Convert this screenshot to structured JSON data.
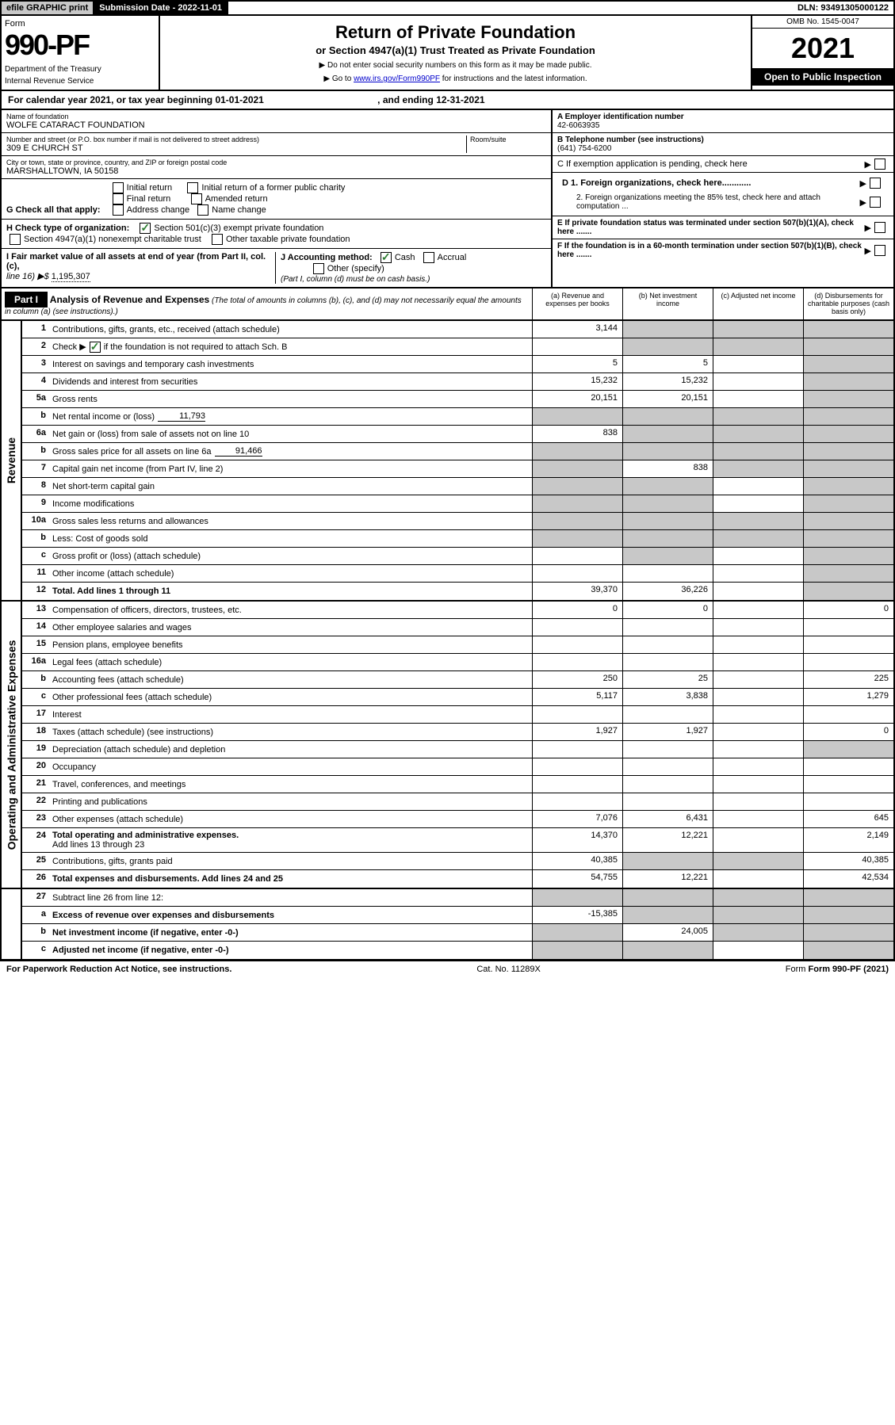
{
  "header_bar": {
    "efile": "efile GRAPHIC print",
    "submission": "Submission Date - 2022-11-01",
    "dln": "DLN: 93491305000122"
  },
  "form_header": {
    "form_word": "Form",
    "form_num": "990-PF",
    "dept1": "Department of the Treasury",
    "dept2": "Internal Revenue Service",
    "title": "Return of Private Foundation",
    "subtitle": "or Section 4947(a)(1) Trust Treated as Private Foundation",
    "inst1": "▶ Do not enter social security numbers on this form as it may be made public.",
    "inst2_pre": "▶ Go to ",
    "inst2_link": "www.irs.gov/Form990PF",
    "inst2_post": " for instructions and the latest information.",
    "omb": "OMB No. 1545-0047",
    "year": "2021",
    "open": "Open to Public Inspection"
  },
  "calendar": {
    "text_pre": "For calendar year 2021, or tax year beginning ",
    "begin": "01-01-2021",
    "mid": " , and ending ",
    "end": "12-31-2021"
  },
  "name_block": {
    "name_label": "Name of foundation",
    "name": "WOLFE CATARACT FOUNDATION",
    "addr_label": "Number and street (or P.O. box number if mail is not delivered to street address)",
    "addr": "309 E CHURCH ST",
    "room_label": "Room/suite",
    "city_label": "City or town, state or province, country, and ZIP or foreign postal code",
    "city": "MARSHALLTOWN, IA  50158"
  },
  "right_block": {
    "a_label": "A Employer identification number",
    "a_val": "42-6063935",
    "b_label": "B Telephone number (see instructions)",
    "b_val": "(641) 754-6200",
    "c_label": "C If exemption application is pending, check here",
    "d1": "D 1. Foreign organizations, check here............",
    "d2": "2. Foreign organizations meeting the 85% test, check here and attach computation ...",
    "e": "E  If private foundation status was terminated under section 507(b)(1)(A), check here .......",
    "f": "F  If the foundation is in a 60-month termination under section 507(b)(1)(B), check here .......",
    "arrow": "▶"
  },
  "g": {
    "label": "G Check all that apply:",
    "opts": [
      "Initial return",
      "Final return",
      "Address change",
      "Initial return of a former public charity",
      "Amended return",
      "Name change"
    ]
  },
  "h": {
    "label": "H Check type of organization:",
    "opt1": "Section 501(c)(3) exempt private foundation",
    "opt2": "Section 4947(a)(1) nonexempt charitable trust",
    "opt3": "Other taxable private foundation"
  },
  "i": {
    "label": "I Fair market value of all assets at end of year (from Part II, col. (c),",
    "line16": "line 16) ▶$ ",
    "value": "1,195,307"
  },
  "j": {
    "label": "J Accounting method:",
    "cash": "Cash",
    "accrual": "Accrual",
    "other": "Other (specify)",
    "note": "(Part I, column (d) must be on cash basis.)"
  },
  "part1": {
    "label": "Part I",
    "title": "Analysis of Revenue and Expenses",
    "title_note": " (The total of amounts in columns (b), (c), and (d) may not necessarily equal the amounts in column (a) (see instructions).)",
    "col_a": "(a)   Revenue and expenses per books",
    "col_b": "(b)   Net investment income",
    "col_c": "(c)   Adjusted net income",
    "col_d": "(d)   Disbursements for charitable purposes (cash basis only)"
  },
  "sides": {
    "revenue": "Revenue",
    "expenses": "Operating and Administrative Expenses"
  },
  "lines": {
    "l1": {
      "num": "1",
      "desc": "Contributions, gifts, grants, etc., received (attach schedule)",
      "a": "3,144"
    },
    "l2": {
      "num": "2",
      "desc_pre": "Check ▶",
      "desc_post": " if the foundation is not required to attach Sch. B"
    },
    "l3": {
      "num": "3",
      "desc": "Interest on savings and temporary cash investments",
      "a": "5",
      "b": "5"
    },
    "l4": {
      "num": "4",
      "desc": "Dividends and interest from securities",
      "a": "15,232",
      "b": "15,232"
    },
    "l5a": {
      "num": "5a",
      "desc": "Gross rents",
      "a": "20,151",
      "b": "20,151"
    },
    "l5b": {
      "num": "b",
      "desc": "Net rental income or (loss)",
      "inline": "11,793"
    },
    "l6a": {
      "num": "6a",
      "desc": "Net gain or (loss) from sale of assets not on line 10",
      "a": "838"
    },
    "l6b": {
      "num": "b",
      "desc": "Gross sales price for all assets on line 6a",
      "inline": "91,466"
    },
    "l7": {
      "num": "7",
      "desc": "Capital gain net income (from Part IV, line 2)",
      "b": "838"
    },
    "l8": {
      "num": "8",
      "desc": "Net short-term capital gain"
    },
    "l9": {
      "num": "9",
      "desc": "Income modifications"
    },
    "l10a": {
      "num": "10a",
      "desc": "Gross sales less returns and allowances"
    },
    "l10b": {
      "num": "b",
      "desc": "Less: Cost of goods sold"
    },
    "l10c": {
      "num": "c",
      "desc": "Gross profit or (loss) (attach schedule)"
    },
    "l11": {
      "num": "11",
      "desc": "Other income (attach schedule)"
    },
    "l12": {
      "num": "12",
      "desc": "Total. Add lines 1 through 11",
      "a": "39,370",
      "b": "36,226"
    },
    "l13": {
      "num": "13",
      "desc": "Compensation of officers, directors, trustees, etc.",
      "a": "0",
      "b": "0",
      "d": "0"
    },
    "l14": {
      "num": "14",
      "desc": "Other employee salaries and wages"
    },
    "l15": {
      "num": "15",
      "desc": "Pension plans, employee benefits"
    },
    "l16a": {
      "num": "16a",
      "desc": "Legal fees (attach schedule)"
    },
    "l16b": {
      "num": "b",
      "desc": "Accounting fees (attach schedule)",
      "a": "250",
      "b": "25",
      "d": "225"
    },
    "l16c": {
      "num": "c",
      "desc": "Other professional fees (attach schedule)",
      "a": "5,117",
      "b": "3,838",
      "d": "1,279"
    },
    "l17": {
      "num": "17",
      "desc": "Interest"
    },
    "l18": {
      "num": "18",
      "desc": "Taxes (attach schedule) (see instructions)",
      "a": "1,927",
      "b": "1,927",
      "d": "0"
    },
    "l19": {
      "num": "19",
      "desc": "Depreciation (attach schedule) and depletion"
    },
    "l20": {
      "num": "20",
      "desc": "Occupancy"
    },
    "l21": {
      "num": "21",
      "desc": "Travel, conferences, and meetings"
    },
    "l22": {
      "num": "22",
      "desc": "Printing and publications"
    },
    "l23": {
      "num": "23",
      "desc": "Other expenses (attach schedule)",
      "a": "7,076",
      "b": "6,431",
      "d": "645"
    },
    "l24": {
      "num": "24",
      "desc": "Total operating and administrative expenses.",
      "desc2": "Add lines 13 through 23",
      "a": "14,370",
      "b": "12,221",
      "d": "2,149"
    },
    "l25": {
      "num": "25",
      "desc": "Contributions, gifts, grants paid",
      "a": "40,385",
      "d": "40,385"
    },
    "l26": {
      "num": "26",
      "desc": "Total expenses and disbursements. Add lines 24 and 25",
      "a": "54,755",
      "b": "12,221",
      "d": "42,534"
    },
    "l27": {
      "num": "27",
      "desc": "Subtract line 26 from line 12:"
    },
    "l27a": {
      "num": "a",
      "desc": "Excess of revenue over expenses and disbursements",
      "a": "-15,385"
    },
    "l27b": {
      "num": "b",
      "desc": "Net investment income (if negative, enter -0-)",
      "b": "24,005"
    },
    "l27c": {
      "num": "c",
      "desc": "Adjusted net income (if negative, enter -0-)"
    }
  },
  "footer": {
    "left": "For Paperwork Reduction Act Notice, see instructions.",
    "mid": "Cat. No. 11289X",
    "right": "Form 990-PF (2021)"
  }
}
